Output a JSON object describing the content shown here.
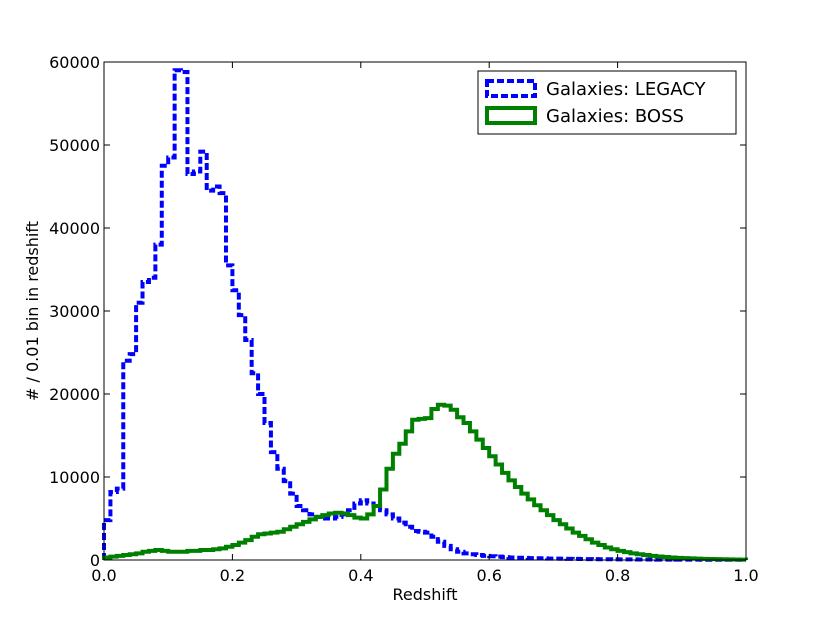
{
  "chart_data": {
    "type": "histogram",
    "xlabel": "Redshift",
    "ylabel": "# / 0.01 bin in redshift",
    "xlim": [
      0.0,
      1.0
    ],
    "ylim": [
      0,
      60000
    ],
    "bin_width": 0.01,
    "x_ticks": [
      0.0,
      0.2,
      0.4,
      0.6,
      0.8,
      1.0
    ],
    "x_tick_labels": [
      "0.0",
      "0.2",
      "0.4",
      "0.6",
      "0.8",
      "1.0"
    ],
    "y_ticks": [
      0,
      10000,
      20000,
      30000,
      40000,
      50000,
      60000
    ],
    "y_tick_labels": [
      "0",
      "10000",
      "20000",
      "30000",
      "40000",
      "50000",
      "60000"
    ],
    "grid": false,
    "legend_position": "top-right",
    "series": [
      {
        "name": "Galaxies: LEGACY",
        "color": "#0000ff",
        "line_style": "dashed",
        "values": [
          4800,
          8200,
          8600,
          24000,
          24800,
          31000,
          33500,
          34000,
          38000,
          47500,
          48500,
          59000,
          58800,
          46500,
          46800,
          49200,
          44500,
          45000,
          44200,
          35500,
          32500,
          29500,
          26500,
          22500,
          20000,
          16500,
          13000,
          11000,
          9500,
          8000,
          6500,
          6000,
          5500,
          5200,
          5000,
          5000,
          5200,
          5500,
          6000,
          6800,
          7200,
          6800,
          6500,
          6000,
          5500,
          5000,
          4500,
          4000,
          3500,
          3400,
          3300,
          2800,
          2200,
          1700,
          1300,
          1000,
          800,
          700,
          600,
          500,
          450,
          400,
          350,
          300,
          270,
          250,
          230,
          210,
          190,
          170,
          160,
          150,
          140,
          130,
          120,
          110,
          100,
          95,
          90,
          85,
          80,
          75,
          70,
          65,
          60,
          55,
          50,
          48,
          46,
          44,
          42,
          40,
          38,
          36,
          34,
          32,
          30,
          28,
          26,
          24
        ]
      },
      {
        "name": "Galaxies: BOSS",
        "color": "#008000",
        "line_style": "solid",
        "values": [
          300,
          400,
          500,
          600,
          700,
          800,
          1000,
          1100,
          1200,
          1100,
          1000,
          1000,
          1000,
          1100,
          1100,
          1200,
          1200,
          1300,
          1400,
          1600,
          1800,
          2100,
          2400,
          2800,
          3100,
          3200,
          3300,
          3400,
          3700,
          4000,
          4300,
          4600,
          4900,
          5200,
          5400,
          5600,
          5700,
          5600,
          5400,
          5100,
          5000,
          5500,
          6500,
          8500,
          11000,
          12800,
          14000,
          15500,
          16900,
          17000,
          17100,
          18200,
          18700,
          18600,
          18100,
          17200,
          16500,
          15500,
          14500,
          13500,
          12500,
          11500,
          10500,
          9600,
          8800,
          8000,
          7300,
          6600,
          6000,
          5400,
          4800,
          4300,
          3800,
          3300,
          2900,
          2500,
          2100,
          1800,
          1500,
          1300,
          1100,
          950,
          800,
          700,
          600,
          500,
          420,
          360,
          300,
          260,
          220,
          190,
          160,
          140,
          120,
          100,
          85,
          70,
          60,
          50
        ]
      }
    ]
  }
}
